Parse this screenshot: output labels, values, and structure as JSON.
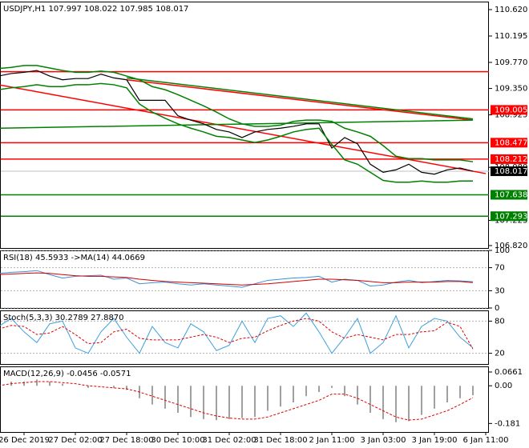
{
  "chart_data": [
    {
      "type": "line",
      "title": "USDJPY,H1  107.997 108.022 107.985 108.017",
      "categories": [
        null,
        null,
        "26 Dec 2019",
        null,
        null,
        null,
        "27 Dec 02:00",
        null,
        null,
        null,
        "27 Dec 18:00",
        null,
        null,
        null,
        "30 Dec 10:00",
        null,
        null,
        null,
        "31 Dec 02:00",
        null,
        null,
        null,
        "31 Dec 18:00",
        null,
        null,
        null,
        "2 Jan 11:00",
        null,
        null,
        null,
        "3 Jan 03:00",
        null,
        null,
        null,
        "3 Jan 19:00",
        null,
        null,
        null,
        "6 Jan 11:00"
      ],
      "ylim": [
        106.781,
        110.749
      ],
      "yticks": [
        {
          "value": 110.62,
          "label": "110.620"
        },
        110.195,
        {
          "value": 109.77,
          "label": "109.770"
        },
        {
          "value": 109.35,
          "label": "109.350"
        },
        108.925,
        {
          "value": 108.08,
          "label": "108.080"
        },
        107.225,
        {
          "value": 106.82,
          "label": "106.820"
        }
      ],
      "grid": false,
      "series": [
        {
          "color": "#000000",
          "width": 1.2,
          "values": [
            109.55,
            109.59,
            109.61,
            109.64,
            109.55,
            109.49,
            109.51,
            109.51,
            109.58,
            109.52,
            109.49,
            109.16,
            109.16,
            109.16,
            108.91,
            108.84,
            108.78,
            108.69,
            108.65,
            108.56,
            108.65,
            108.69,
            108.71,
            108.74,
            108.78,
            108.78,
            108.39,
            108.56,
            108.46,
            108.13,
            108.0,
            108.04,
            108.13,
            108.0,
            107.97,
            108.04,
            108.07,
            108.017,
            null
          ]
        },
        {
          "color": "#008000",
          "width": 1.5,
          "values": [
            109.67,
            109.69,
            109.72,
            109.72,
            109.68,
            109.64,
            109.61,
            109.61,
            109.63,
            109.61,
            109.55,
            109.49,
            109.38,
            109.33,
            109.25,
            109.16,
            109.07,
            108.97,
            108.86,
            108.78,
            108.74,
            108.74,
            108.76,
            108.82,
            108.84,
            108.84,
            108.82,
            108.71,
            108.65,
            108.58,
            108.43,
            108.26,
            108.22,
            108.22,
            108.2,
            108.2,
            108.2,
            108.17,
            null
          ]
        },
        {
          "color": "#008000",
          "width": 1.5,
          "values": [
            109.33,
            109.36,
            109.38,
            109.41,
            109.38,
            109.38,
            109.41,
            109.41,
            109.43,
            109.41,
            109.36,
            109.1,
            108.97,
            108.87,
            108.78,
            108.71,
            108.65,
            108.58,
            108.56,
            108.52,
            108.48,
            108.52,
            108.58,
            108.65,
            108.69,
            108.71,
            108.45,
            108.2,
            108.13,
            108.0,
            107.87,
            107.84,
            107.84,
            107.86,
            107.84,
            107.84,
            107.86,
            107.86,
            null
          ]
        }
      ],
      "trendlines": [
        {
          "color": "#ff0000",
          "x": [
            0,
            38
          ],
          "y": [
            109.41,
            107.98
          ]
        },
        {
          "color": "#ff0000",
          "x": [
            10,
            37
          ],
          "y": [
            109.49,
            108.84
          ]
        },
        {
          "color": "#008000",
          "x": [
            0,
            37
          ],
          "y": [
            108.71,
            108.84
          ]
        },
        {
          "color": "#008000",
          "x": [
            10,
            37
          ],
          "y": [
            109.52,
            108.86
          ]
        }
      ],
      "levels": [
        {
          "value": 109.62,
          "color": "#ff0000",
          "tag": false
        },
        {
          "value": 109.005,
          "color": "#ff0000",
          "tag": true
        },
        {
          "value": 108.477,
          "color": "#ff0000",
          "tag": true
        },
        {
          "value": 108.212,
          "color": "#ff0000",
          "tag": true
        },
        {
          "value": 107.638,
          "color": "#008000",
          "tag": true
        },
        {
          "value": 107.293,
          "color": "#008000",
          "tag": true
        }
      ],
      "current": {
        "value": 108.017,
        "color": "#000000"
      }
    },
    {
      "type": "line",
      "title": "RSI(18) 45.5933 ->MA(14) 44.0669",
      "ylim": [
        0,
        100
      ],
      "yticks": [
        0,
        30,
        70,
        100
      ],
      "grid": true,
      "series": [
        {
          "color": "#3c8fd6",
          "width": 1,
          "values": [
            60,
            62,
            63,
            65,
            58,
            52,
            55,
            56,
            57,
            50,
            52,
            42,
            44,
            45,
            42,
            40,
            42,
            40,
            38,
            36,
            42,
            48,
            50,
            52,
            53,
            55,
            45,
            50,
            48,
            38,
            40,
            45,
            48,
            44,
            46,
            48,
            47,
            45.5933,
            null
          ]
        },
        {
          "color": "#d00000",
          "width": 1,
          "values": [
            58,
            59,
            60,
            61,
            60,
            58,
            56,
            55,
            55,
            54,
            53,
            50,
            48,
            46,
            45,
            44,
            43,
            42,
            41,
            40,
            41,
            42,
            44,
            46,
            48,
            50,
            50,
            49,
            48,
            46,
            44,
            44,
            45,
            45,
            45,
            46,
            46,
            44.0669,
            null
          ]
        }
      ]
    },
    {
      "type": "line",
      "title": "Stoch(5,3,3) 30.2789 27.8870",
      "ylim": [
        0,
        100
      ],
      "yticks": [
        20,
        80
      ],
      "grid": true,
      "series": [
        {
          "color": "#3ca0dc",
          "width": 1,
          "values": [
            70,
            85,
            60,
            40,
            75,
            80,
            30,
            20,
            60,
            85,
            50,
            20,
            70,
            40,
            30,
            75,
            60,
            25,
            35,
            80,
            40,
            85,
            90,
            70,
            95,
            60,
            20,
            50,
            85,
            20,
            40,
            90,
            30,
            70,
            85,
            80,
            50,
            30.2789,
            null
          ]
        },
        {
          "color": "#e00000",
          "width": 1,
          "dash": true,
          "values": [
            65,
            72,
            70,
            55,
            58,
            70,
            55,
            38,
            40,
            60,
            65,
            48,
            45,
            45,
            45,
            50,
            55,
            50,
            40,
            48,
            50,
            62,
            72,
            80,
            85,
            80,
            60,
            48,
            55,
            50,
            45,
            55,
            55,
            60,
            62,
            78,
            70,
            27.887,
            null
          ]
        }
      ]
    },
    {
      "type": "bar",
      "title": "MACD(12,26,9) -0.0456 -0.0571",
      "ylim": [
        -0.222,
        0.093
      ],
      "yticks": [
        0.0661,
        {
          "value": 0,
          "label": "0.00"
        },
        -0.181
      ],
      "grid": false,
      "series": [
        {
          "type": "bar",
          "color": "#a0a0a0",
          "values": [
            0.01,
            0.02,
            0.02,
            0.03,
            0.02,
            0.01,
            0.0,
            -0.01,
            0.0,
            -0.01,
            -0.02,
            -0.06,
            -0.09,
            -0.11,
            -0.13,
            -0.15,
            -0.16,
            -0.165,
            -0.16,
            -0.155,
            -0.15,
            -0.12,
            -0.1,
            -0.08,
            -0.05,
            -0.03,
            -0.01,
            -0.05,
            -0.09,
            -0.13,
            -0.16,
            -0.175,
            -0.17,
            -0.14,
            -0.11,
            -0.08,
            -0.06,
            -0.0456,
            null
          ]
        },
        {
          "type": "line",
          "color": "#e00000",
          "width": 1,
          "dash": true,
          "values": [
            0.0,
            0.01,
            0.015,
            0.02,
            0.02,
            0.015,
            0.01,
            0.0,
            -0.005,
            -0.01,
            -0.015,
            -0.03,
            -0.05,
            -0.07,
            -0.09,
            -0.11,
            -0.13,
            -0.145,
            -0.155,
            -0.16,
            -0.16,
            -0.15,
            -0.13,
            -0.11,
            -0.09,
            -0.07,
            -0.04,
            -0.04,
            -0.06,
            -0.09,
            -0.12,
            -0.15,
            -0.165,
            -0.16,
            -0.14,
            -0.12,
            -0.09,
            -0.0571,
            null
          ]
        }
      ]
    }
  ]
}
